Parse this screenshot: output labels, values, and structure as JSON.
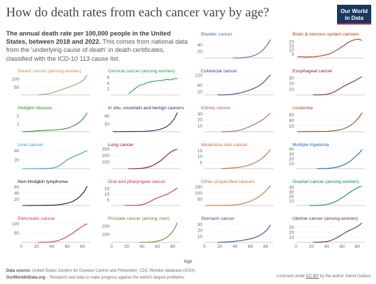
{
  "header": {
    "title": "How do death rates from each cancer vary by age?",
    "subtitle_bold": "The annual death rate per 100,000 people in the United States, between 2018 and 2022.",
    "subtitle_rest": " This comes from national data from the 'underlying cause of death' in death certificates, classified with the ICD-10 113 cause list.",
    "logo_line1": "Our World",
    "logo_line2": "in Data"
  },
  "footer": {
    "source_label": "Data source:",
    "source_text": " United States Centers for Disease Control and Prevention, CDC Wonder database (2024).",
    "site": "OurWorldInData.org",
    "tagline": " – Research and data to make progress against the world's largest problems.",
    "license_prefix": "Licensed under ",
    "license_link": "CC-BY",
    "license_suffix": " by the author Saloni Dattani"
  },
  "chart_data": {
    "type": "line",
    "x": [
      2,
      7,
      12,
      17,
      22,
      27,
      32,
      37,
      42,
      47,
      52,
      57,
      62,
      67,
      72,
      77,
      82,
      86
    ],
    "xlabel": "Age",
    "xticks": [
      0,
      20,
      40,
      60,
      80
    ],
    "panels": [
      {
        "title": "Bladder cancer",
        "color": "#4c6a9c",
        "yticks": [
          20,
          40
        ],
        "ylim": [
          0,
          62
        ],
        "values": [
          null,
          null,
          null,
          null,
          null,
          null,
          null,
          0.1,
          0.3,
          0.7,
          1.5,
          3,
          5.5,
          9.5,
          16,
          26,
          40,
          56
        ]
      },
      {
        "title": "Brain & nervous system cancers",
        "color": "#b13507",
        "yticks": [
          5,
          10,
          15,
          20
        ],
        "ylim": [
          0,
          25
        ],
        "values": [
          1.8,
          1.5,
          1.2,
          1.3,
          1.5,
          2,
          2.5,
          3.5,
          4.5,
          6.5,
          9,
          12,
          15,
          18.5,
          21,
          22.5,
          23,
          21.5
        ]
      },
      {
        "title": "Breast cancer (among women)",
        "color": "#bc8e5a",
        "yticks": [
          50,
          100
        ],
        "ylim": [
          0,
          130
        ],
        "values": [
          null,
          null,
          null,
          null,
          0.6,
          2,
          5,
          9,
          16,
          24,
          33,
          41,
          50,
          58,
          68,
          80,
          98,
          126
        ]
      },
      {
        "title": "Cervical cancer (among women)",
        "color": "#18a34a",
        "yticks": [
          2,
          4,
          6
        ],
        "ylim": [
          0,
          7
        ],
        "values": [
          null,
          null,
          null,
          null,
          0.4,
          1.3,
          2.4,
          3.3,
          3.6,
          4.2,
          4.5,
          4.7,
          4.9,
          5,
          5.3,
          5.1,
          5.6,
          5.5
        ]
      },
      {
        "title": "Colorectal cancer",
        "color": "#4e2b8c",
        "yticks": [
          20,
          60,
          120
        ],
        "ylim": [
          0,
          125
        ],
        "values": [
          null,
          null,
          null,
          0.1,
          0.4,
          1,
          2.2,
          4,
          7.5,
          12.5,
          19,
          27,
          35,
          45,
          58,
          76,
          102,
          122
        ]
      },
      {
        "title": "Esophageal cancer",
        "color": "#7a1c26",
        "yticks": [
          10,
          20,
          30
        ],
        "ylim": [
          0,
          36
        ],
        "values": [
          null,
          null,
          null,
          null,
          0.05,
          0.1,
          0.3,
          0.6,
          1.5,
          3.5,
          7,
          11,
          15,
          18.5,
          22,
          25,
          29,
          32
        ]
      },
      {
        "title": "Hodgkin disease",
        "color": "#31872b",
        "yticks": [
          1,
          2
        ],
        "ylim": [
          0,
          2.6
        ],
        "values": [
          0.02,
          0.02,
          0.05,
          0.08,
          0.12,
          0.15,
          0.18,
          0.2,
          0.22,
          0.25,
          0.3,
          0.38,
          0.5,
          0.7,
          0.95,
          1.3,
          1.8,
          2.4
        ]
      },
      {
        "title": "In situ, uncertain and benign cancers",
        "color": "#0e2a5a",
        "yticks": [
          20,
          40
        ],
        "ylim": [
          0,
          52
        ],
        "values": [
          0.5,
          0.4,
          0.4,
          0.5,
          0.6,
          0.7,
          0.8,
          0.9,
          1.1,
          1.5,
          2.2,
          3.4,
          5.5,
          8.5,
          13,
          21,
          33,
          49
        ]
      },
      {
        "title": "Kidney cancer",
        "color": "#a45a84",
        "yticks": [
          10,
          20,
          30
        ],
        "ylim": [
          0,
          34
        ],
        "values": [
          null,
          null,
          null,
          null,
          0.1,
          0.2,
          0.4,
          0.8,
          1.6,
          3,
          5,
          7.5,
          10.5,
          13.5,
          17,
          21,
          26,
          31
        ]
      },
      {
        "title": "Leukemia",
        "color": "#934b25",
        "yticks": [
          20,
          40,
          60
        ],
        "ylim": [
          0,
          72
        ],
        "values": [
          0.7,
          0.5,
          0.6,
          0.7,
          0.8,
          0.9,
          1,
          1.3,
          1.8,
          3,
          4.5,
          7,
          10.5,
          16,
          24,
          35,
          50,
          67
        ]
      },
      {
        "title": "Liver cancer",
        "color": "#2a99c5",
        "yticks": [
          20,
          40
        ],
        "ylim": [
          0,
          46
        ],
        "values": [
          0.05,
          0.03,
          0.03,
          0.05,
          0.1,
          0.2,
          0.4,
          0.8,
          1.6,
          3.8,
          9,
          16,
          22,
          26,
          29.5,
          33,
          37.5,
          40
        ]
      },
      {
        "title": "Lung cancer",
        "color": "#96001a",
        "yticks": [
          100,
          200,
          300
        ],
        "ylim": [
          0,
          310
        ],
        "values": [
          null,
          null,
          null,
          null,
          0.2,
          0.5,
          1.2,
          3,
          8,
          19,
          38,
          66,
          102,
          148,
          200,
          248,
          280,
          295
        ]
      },
      {
        "title": "Melanoma skin cancer",
        "color": "#d9643b",
        "yticks": [
          5,
          10,
          15
        ],
        "ylim": [
          0,
          17
        ],
        "values": [
          null,
          null,
          null,
          null,
          0.1,
          0.2,
          0.4,
          0.6,
          0.9,
          1.3,
          2,
          2.8,
          3.8,
          5.2,
          7,
          9.5,
          12.5,
          16
        ]
      },
      {
        "title": "Multiple myeloma",
        "color": "#1a5fb4",
        "yticks": [
          10,
          20,
          30,
          40
        ],
        "ylim": [
          0,
          42
        ],
        "values": [
          null,
          null,
          null,
          null,
          null,
          0.05,
          0.1,
          0.3,
          0.6,
          1.3,
          2.5,
          4.5,
          7.5,
          11.5,
          17,
          24,
          31,
          39
        ]
      },
      {
        "title": "Non-Hodgkin lymphoma",
        "color": "#111111",
        "yticks": [
          20,
          40,
          60
        ],
        "ylim": [
          0,
          66
        ],
        "values": [
          0.1,
          0.1,
          0.15,
          0.2,
          0.3,
          0.4,
          0.6,
          0.9,
          1.4,
          2.3,
          3.6,
          5.5,
          8.5,
          13,
          20,
          30,
          44,
          62
        ]
      },
      {
        "title": "Oral and pharyngeal cancer",
        "color": "#c0353d",
        "yticks": [
          5,
          10,
          15
        ],
        "ylim": [
          0,
          18
        ],
        "values": [
          null,
          null,
          null,
          0.02,
          0.05,
          0.1,
          0.2,
          0.5,
          1.1,
          2.3,
          4,
          5.8,
          7.2,
          8.5,
          9.8,
          11.5,
          13.5,
          15.5
        ]
      },
      {
        "title": "Other unspecified cancers",
        "color": "#c8732c",
        "yticks": [
          50,
          100,
          150
        ],
        "ylim": [
          0,
          165
        ],
        "values": [
          0.5,
          0.4,
          0.5,
          0.6,
          0.8,
          1.2,
          2,
          3.5,
          6,
          11,
          18,
          28,
          40,
          55,
          75,
          100,
          130,
          160
        ]
      },
      {
        "title": "Ovarian cancer (among women)",
        "color": "#00857c",
        "yticks": [
          10,
          20,
          30,
          40
        ],
        "ylim": [
          0,
          45
        ],
        "values": [
          null,
          null,
          null,
          0.05,
          0.1,
          0.3,
          0.7,
          1.5,
          3,
          5.5,
          9,
          14,
          19,
          25,
          31,
          36,
          41,
          42
        ]
      },
      {
        "title": "Pancreatic cancer",
        "color": "#d32f5b",
        "yticks": [
          50,
          100
        ],
        "ylim": [
          0,
          110
        ],
        "values": [
          null,
          null,
          null,
          null,
          0.1,
          0.3,
          0.7,
          1.6,
          3.8,
          8,
          15,
          24,
          36,
          50,
          64,
          78,
          92,
          100
        ]
      },
      {
        "title": "Prostate cancer (among men)",
        "color": "#5c8a1e",
        "yticks": [
          100,
          200
        ],
        "ylim": [
          0,
          250
        ],
        "values": [
          null,
          null,
          null,
          null,
          null,
          null,
          null,
          0.1,
          0.3,
          1.2,
          4,
          9,
          19,
          35,
          60,
          100,
          160,
          240
        ]
      },
      {
        "title": "Stomach cancer",
        "color": "#2a4b95",
        "yticks": [
          10,
          20,
          30
        ],
        "ylim": [
          0,
          34
        ],
        "values": [
          null,
          null,
          null,
          0.05,
          0.2,
          0.5,
          0.9,
          1.4,
          2,
          2.8,
          3.8,
          5,
          6.5,
          8.5,
          11.5,
          15.5,
          21,
          29
        ]
      },
      {
        "title": "Uterine cancer (among women)",
        "color": "#6b2c2c",
        "yticks": [
          10,
          20,
          30
        ],
        "ylim": [
          0,
          40
        ],
        "values": [
          null,
          null,
          null,
          null,
          0.1,
          0.2,
          0.5,
          1.1,
          2.2,
          4.5,
          8,
          12.5,
          17,
          21.5,
          25,
          28.5,
          33,
          38
        ]
      }
    ]
  }
}
